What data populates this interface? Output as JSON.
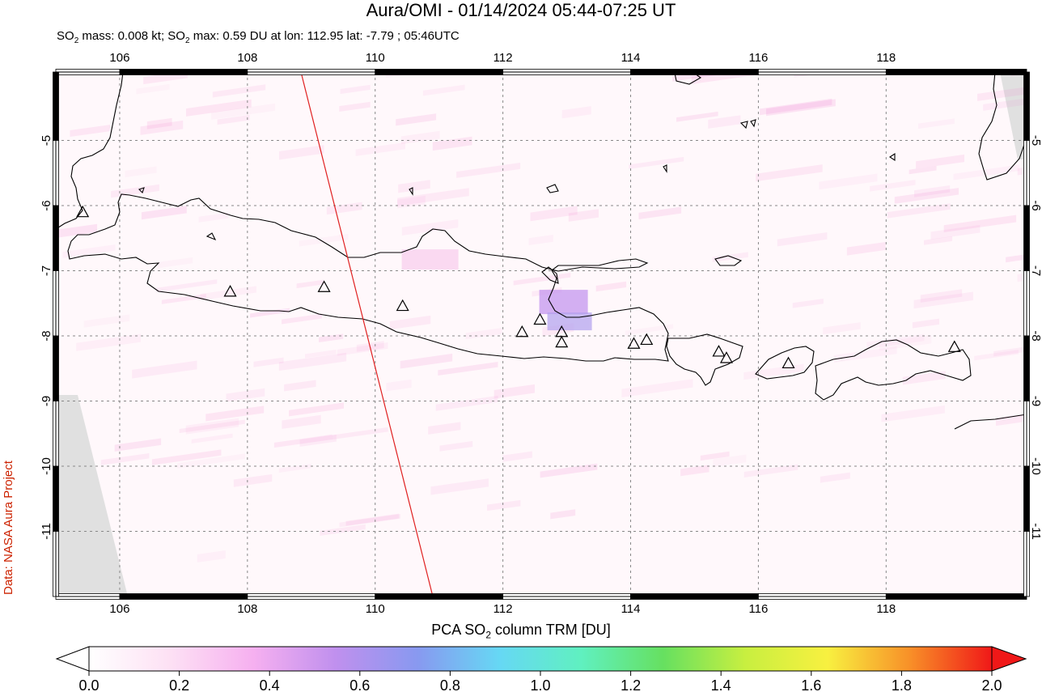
{
  "title": "Aura/OMI - 01/14/2024 05:44-07:25 UT",
  "subtitle": {
    "prefix": "SO",
    "sub1": "2",
    "mid": " mass: 0.008 kt; SO",
    "sub2": "2",
    "suffix": " max: 0.59 DU at lon: 112.95 lat: -7.79 ; 05:46UTC"
  },
  "credit": "Data: NASA Aura Project",
  "map": {
    "lon_range": [
      105,
      120.2
    ],
    "lat_range": [
      -12,
      -3.95
    ],
    "lon_ticks": [
      "106",
      "108",
      "110",
      "112",
      "114",
      "116",
      "118"
    ],
    "lat_ticks": [
      "-5",
      "-6",
      "-7",
      "-8",
      "-9",
      "-10",
      "-11"
    ],
    "grid": true,
    "orbit_track_color": "#e02020",
    "coastline_color": "#000000",
    "no_data_color": "#e0e0e0",
    "volcanoes": [
      {
        "lon": 105.42,
        "lat": -6.1
      },
      {
        "lon": 107.73,
        "lat": -7.32
      },
      {
        "lon": 109.2,
        "lat": -7.25
      },
      {
        "lon": 110.43,
        "lat": -7.54
      },
      {
        "lon": 112.3,
        "lat": -7.94
      },
      {
        "lon": 112.58,
        "lat": -7.75
      },
      {
        "lon": 112.92,
        "lat": -7.94
      },
      {
        "lon": 112.92,
        "lat": -8.1
      },
      {
        "lon": 114.05,
        "lat": -8.12
      },
      {
        "lon": 114.25,
        "lat": -8.06
      },
      {
        "lon": 115.38,
        "lat": -8.24
      },
      {
        "lon": 115.5,
        "lat": -8.34
      },
      {
        "lon": 116.47,
        "lat": -8.42
      },
      {
        "lon": 119.07,
        "lat": -8.17
      }
    ]
  },
  "colorbar": {
    "title_prefix": "PCA SO",
    "title_sub": "2",
    "title_suffix": " column TRM [DU]",
    "ticks": [
      "0.0",
      "0.2",
      "0.4",
      "0.6",
      "0.8",
      "1.0",
      "1.2",
      "1.4",
      "1.6",
      "1.8",
      "2.0"
    ],
    "range": [
      0,
      2
    ],
    "colors": [
      "#ffffff",
      "#fde0f4",
      "#f6b0f0",
      "#c090ee",
      "#8899f0",
      "#66d8f4",
      "#60f0c0",
      "#66e060",
      "#c8ef40",
      "#f8f040",
      "#f89028",
      "#f01818"
    ]
  }
}
